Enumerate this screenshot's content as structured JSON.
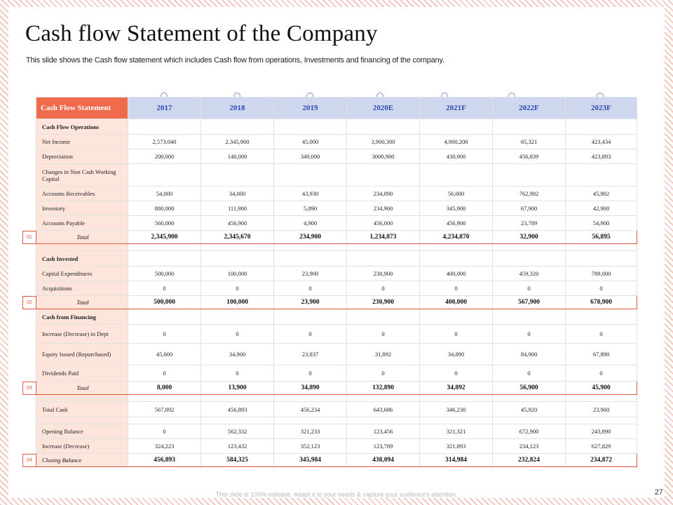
{
  "slide": {
    "title": "Cash flow Statement of the Company",
    "subtitle": "This slide shows the Cash flow statement which includes Cash flow from operations, Investments and financing of the company.",
    "footer": "This slide is 100% editable. Adapt it to your needs & capture your audience's attention.",
    "page_number": "27"
  },
  "table": {
    "header_label": "Cash Flow Statement",
    "years": [
      "2017",
      "2018",
      "2019",
      "2020E",
      "2021F",
      "2022F",
      "2023F"
    ],
    "rows": [
      {
        "label": "Cash Flow Operations",
        "kind": "section",
        "values": [
          "",
          "",
          "",
          "",
          "",
          "",
          ""
        ]
      },
      {
        "label": "Net Income",
        "kind": "data",
        "values": [
          "2,573,040",
          "2,345,900",
          "45,000",
          "3,900,300",
          "4,900,200",
          "65,321",
          "423,434"
        ]
      },
      {
        "label": "Depreciation",
        "kind": "data",
        "values": [
          "200,000",
          "140,000",
          "349,000",
          "3000,900",
          "430,900",
          "456,839",
          "423,893"
        ]
      },
      {
        "label": "Changes  in Non Cash Working  Capital",
        "kind": "wrap",
        "values": [
          "",
          "",
          "",
          "",
          "",
          "",
          ""
        ]
      },
      {
        "label": "Accounts Receivables",
        "kind": "data",
        "values": [
          "54,000",
          "34,000",
          "43,930",
          "234,890",
          "56,000",
          "762,982",
          "45,902"
        ]
      },
      {
        "label": "Inventory",
        "kind": "data",
        "values": [
          "880,000",
          "111,900",
          "5,890",
          "234,900",
          "345,900",
          "67,900",
          "42,900"
        ]
      },
      {
        "label": "Accounts Payable",
        "kind": "data",
        "values": [
          "560,000",
          "456,900",
          "4,900",
          "456,000",
          "456,900",
          "23,789",
          "54,900"
        ]
      },
      {
        "label": "Total",
        "kind": "total",
        "marker": "01",
        "values": [
          "2,345,900",
          "2,345,670",
          "234,900",
          "1,234,873",
          "4,234,870",
          "32,900",
          "56,895"
        ]
      },
      {
        "label": "",
        "kind": "blank",
        "values": [
          "",
          "",
          "",
          "",
          "",
          "",
          ""
        ]
      },
      {
        "label": "Cash Invested",
        "kind": "section",
        "values": [
          "",
          "",
          "",
          "",
          "",
          "",
          ""
        ]
      },
      {
        "label": "Capital  Expenditures",
        "kind": "data",
        "values": [
          "500,000",
          "100,000",
          "23,900",
          "230,900",
          "400,000",
          "459,320",
          "789,000"
        ]
      },
      {
        "label": "Acquisitions",
        "kind": "data",
        "values": [
          "0",
          "0",
          "0",
          "0",
          "0",
          "0",
          "0"
        ]
      },
      {
        "label": "Total",
        "kind": "total",
        "marker": "02",
        "values": [
          "500,000",
          "100,000",
          "23,900",
          "230,900",
          "400,000",
          "567,900",
          "678,900"
        ]
      },
      {
        "label": "Cash from Financing",
        "kind": "section",
        "values": [
          "",
          "",
          "",
          "",
          "",
          "",
          ""
        ]
      },
      {
        "label": "Increase  (Decrease)  in Dept",
        "kind": "data",
        "values": [
          "0",
          "0",
          "0",
          "0",
          "0",
          "0",
          "0"
        ]
      },
      {
        "label": "Equity Issued  (Repurchased)",
        "kind": "data",
        "values": [
          "45,000",
          "34,900",
          "23,837",
          "31,892",
          "34,890",
          "84,900",
          "67,890"
        ]
      },
      {
        "label": "Dividends Paid",
        "kind": "data",
        "values": [
          "0",
          "0",
          "0",
          "0",
          "0",
          "0",
          "0"
        ]
      },
      {
        "label": "Total",
        "kind": "total",
        "marker": "03",
        "values": [
          "8,000",
          "13,900",
          "34,890",
          "132,890",
          "34,892",
          "56,900",
          "45,900"
        ]
      },
      {
        "label": "",
        "kind": "blank",
        "values": [
          "",
          "",
          "",
          "",
          "",
          "",
          ""
        ]
      },
      {
        "label": "Total Cash",
        "kind": "data",
        "values": [
          "567,892",
          "456,893",
          "456,234",
          "643,686",
          "346,230",
          "45,920",
          "23,900"
        ]
      },
      {
        "label": "",
        "kind": "blank",
        "values": [
          "",
          "",
          "",
          "",
          "",
          "",
          ""
        ]
      },
      {
        "label": "Opening Balance",
        "kind": "data",
        "values": [
          "0",
          "562,332",
          "321,233",
          "123,456",
          "321,321",
          "672,900",
          "243,890"
        ]
      },
      {
        "label": "Increase  (Decrease)",
        "kind": "data",
        "values": [
          "324,223",
          "123,432",
          "352,123",
          "123,789",
          "321,893",
          "234,123",
          "627,829"
        ]
      },
      {
        "label": "Closing Balance",
        "kind": "total closing",
        "marker": "04",
        "values": [
          "456,893",
          "584,325",
          "345,984",
          "438,094",
          "314,984",
          "232,824",
          "234,872"
        ]
      }
    ]
  },
  "colors": {
    "header_accent": "#f06a4c",
    "header_year_bg": "#cfd7ef",
    "header_year_text": "#2f49b5",
    "label_bg": "#fde5dc",
    "total_border": "#e05a40"
  }
}
